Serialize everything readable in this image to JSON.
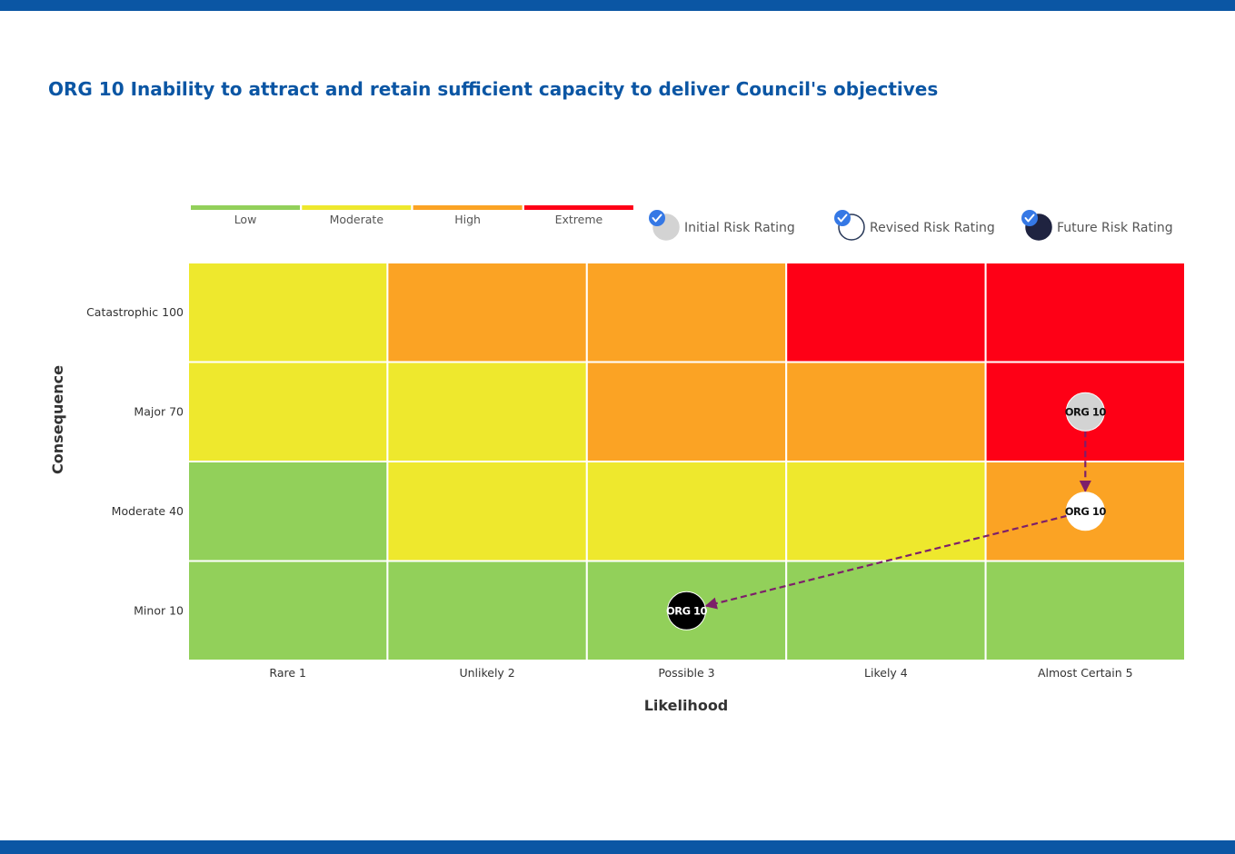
{
  "colors": {
    "Low": "#92d05a",
    "Moderate": "#eee82d",
    "High": "#fba324",
    "Extreme": "#fe0016",
    "brand": "#0b56a4",
    "arrow": "#7d1f6a",
    "check": "#3578e5"
  },
  "chart_data": {
    "type": "heatmap",
    "title": "ORG 10 Inability to attract and retain sufficient capacity to deliver Council's objectives",
    "xlabel": "Likelihood",
    "ylabel": "Consequence",
    "x": [
      "Rare 1",
      "Unlikely 2",
      "Possible 3",
      "Likely 4",
      "Almost Certain 5"
    ],
    "y": [
      "Minor 10",
      "Moderate 40",
      "Major 70",
      "Catastrophic 100"
    ],
    "levels": [
      "Low",
      "Moderate",
      "High",
      "Extreme"
    ],
    "grid": [
      [
        "Low",
        "Low",
        "Low",
        "Low",
        "Low"
      ],
      [
        "Low",
        "Moderate",
        "Moderate",
        "Moderate",
        "High"
      ],
      [
        "Moderate",
        "Moderate",
        "High",
        "High",
        "Extreme"
      ],
      [
        "Moderate",
        "High",
        "High",
        "Extreme",
        "Extreme"
      ]
    ],
    "rating_legend": [
      {
        "name": "Initial Risk Rating",
        "fill": "#d3d3d3",
        "stroke": "#d3d3d3",
        "checked": true
      },
      {
        "name": "Revised Risk Rating",
        "fill": "#ffffff",
        "stroke": "#2a3a5a",
        "checked": true
      },
      {
        "name": "Future Risk Rating",
        "fill": "#1f2340",
        "stroke": "#1f2340",
        "checked": true
      }
    ],
    "markers": [
      {
        "label": "ORG 10",
        "rating": "Initial Risk Rating",
        "x": 5,
        "y": 70,
        "fill": "#d3d3d3",
        "text": "#111111"
      },
      {
        "label": "ORG 10",
        "rating": "Revised Risk Rating",
        "x": 5,
        "y": 40,
        "fill": "#ffffff",
        "text": "#111111"
      },
      {
        "label": "ORG 10",
        "rating": "Future Risk Rating",
        "x": 3,
        "y": 10,
        "fill": "#000000",
        "text": "#ffffff"
      }
    ],
    "legend_position": "top"
  }
}
